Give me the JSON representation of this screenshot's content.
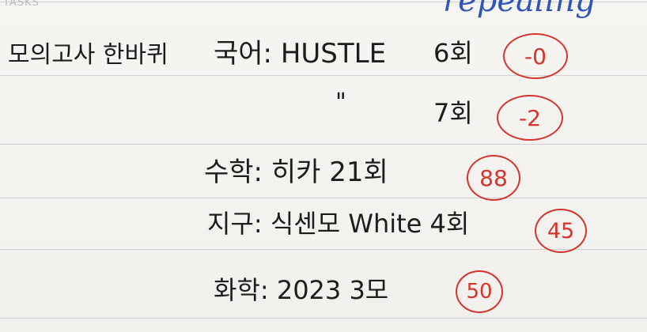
{
  "header": {
    "tasks_label": "TASKS",
    "top_scribble": "repealing"
  },
  "title": "모의고사 한바퀴",
  "entries": [
    {
      "subject": "국어: HUSTLE",
      "count": "6회",
      "score": "-0"
    },
    {
      "ditto": "\"",
      "count": "7회",
      "score": "-2"
    },
    {
      "subject": "수학: 히카 21회",
      "score": "88"
    },
    {
      "subject": "지구: 식센모 White 4회",
      "score": "45"
    },
    {
      "subject": "화학: 2023 3모",
      "score": "50"
    }
  ]
}
